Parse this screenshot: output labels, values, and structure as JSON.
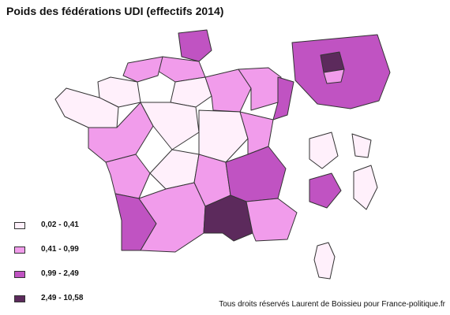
{
  "title": "Poids des fédérations UDI (effectifs 2014)",
  "legend": [
    {
      "label": "0,02 - 0,41",
      "color": "#fff0fb"
    },
    {
      "label": "0,41 - 0,99",
      "color": "#f19ceb"
    },
    {
      "label": "0,99 - 2,49",
      "color": "#c053c2"
    },
    {
      "label": "2,49 - 10,58",
      "color": "#5c2a5c"
    }
  ],
  "credit": "Tous droits réservés Laurent de Boissieu pour France-politique.fr",
  "map_style": {
    "border_color": "#333333",
    "background": "#ffffff"
  }
}
